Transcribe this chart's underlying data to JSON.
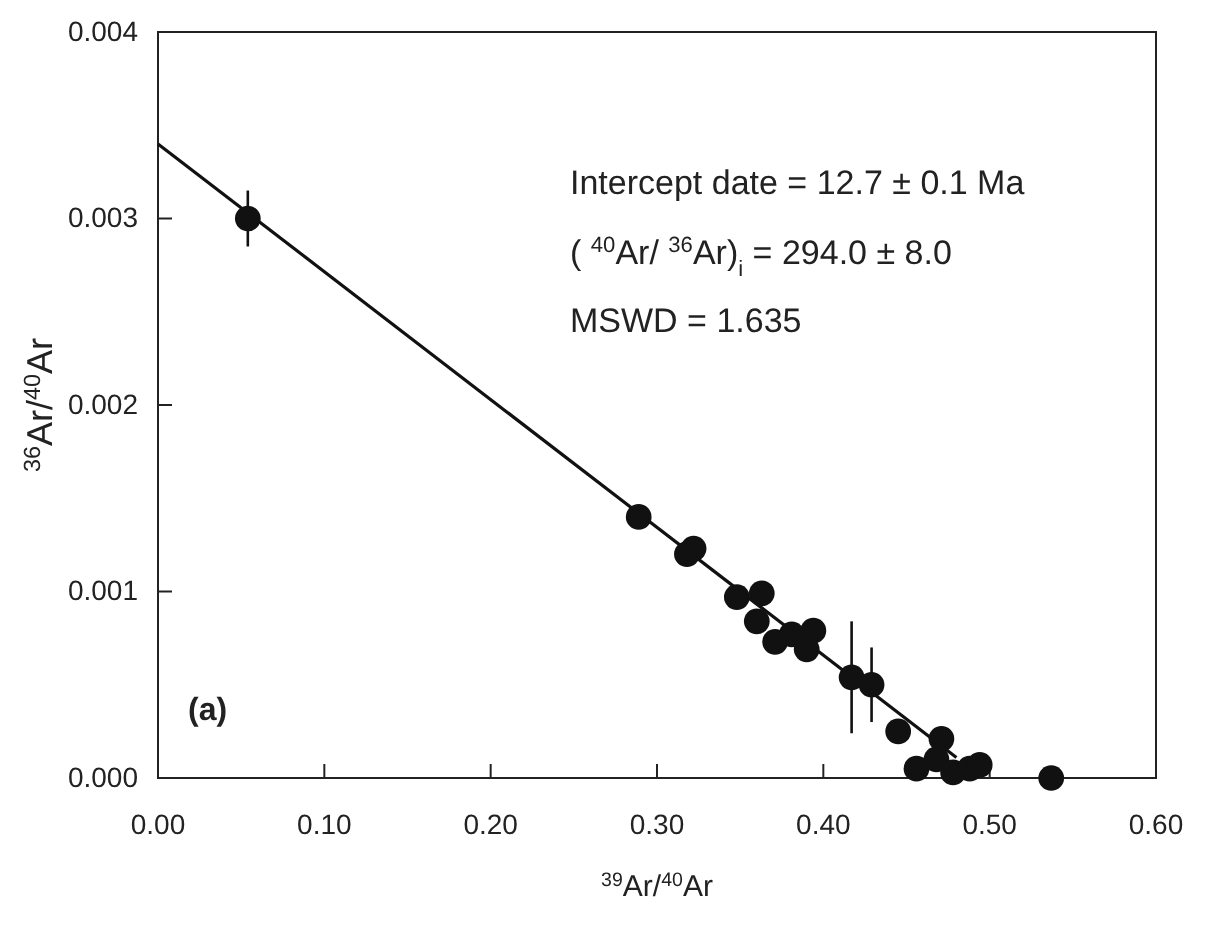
{
  "chart_data": {
    "type": "scatter",
    "xlabel": "$^{39}$Ar/$^{40}$Ar",
    "ylabel": "$^{36}$Ar/$^{40}$Ar",
    "xlim": [
      0,
      0.6
    ],
    "ylim": [
      0,
      0.004
    ],
    "xticks": [
      {
        "value": 0,
        "label": "0.00"
      },
      {
        "value": 0.1,
        "label": "0.10"
      },
      {
        "value": 0.2,
        "label": "0.20"
      },
      {
        "value": 0.3,
        "label": "0.30"
      },
      {
        "value": 0.4,
        "label": "0.40"
      },
      {
        "value": 0.5,
        "label": "0.50"
      },
      {
        "value": 0.6,
        "label": "0.60"
      }
    ],
    "yticks": [
      {
        "value": 0,
        "label": "0.000"
      },
      {
        "value": 0.001,
        "label": "0.001"
      },
      {
        "value": 0.002,
        "label": "0.002"
      },
      {
        "value": 0.003,
        "label": "0.003"
      },
      {
        "value": 0.004,
        "label": "0.004"
      }
    ],
    "grid": false,
    "annotations": [
      "Intercept date = 12.7 ± 0.1 Ma",
      "( $^{40}$Ar/ $^{36}$Ar)$_{i}$ = 294.0 ± 8.0",
      "MSWD = 1.635",
      "(a)"
    ],
    "series": [
      {
        "marker": "circle",
        "color": "#111111",
        "x": [
          0.054,
          0.289,
          0.318,
          0.322,
          0.348,
          0.363,
          0.36,
          0.371,
          0.381,
          0.394,
          0.39,
          0.417,
          0.429,
          0.445,
          0.471,
          0.456,
          0.468,
          0.478,
          0.488,
          0.494,
          0.537
        ],
        "values": [
          0.003,
          0.0014,
          0.0012,
          0.00123,
          0.00097,
          0.00099,
          0.00084,
          0.00073,
          0.00077,
          0.00079,
          0.00069,
          0.00054,
          0.0005,
          0.00025,
          0.00021,
          5e-05,
          0.0001,
          3e-05,
          5e-05,
          7e-05,
          0.0
        ],
        "errors": [
          0.00015,
          null,
          null,
          null,
          null,
          null,
          null,
          null,
          null,
          null,
          null,
          0.0003,
          0.0002,
          null,
          null,
          null,
          null,
          null,
          null,
          null,
          null
        ]
      },
      {
        "type": "line",
        "color": "#111111",
        "x": [
          0,
          0.48
        ],
        "values": [
          0.0034,
          0.00011
        ]
      }
    ]
  }
}
